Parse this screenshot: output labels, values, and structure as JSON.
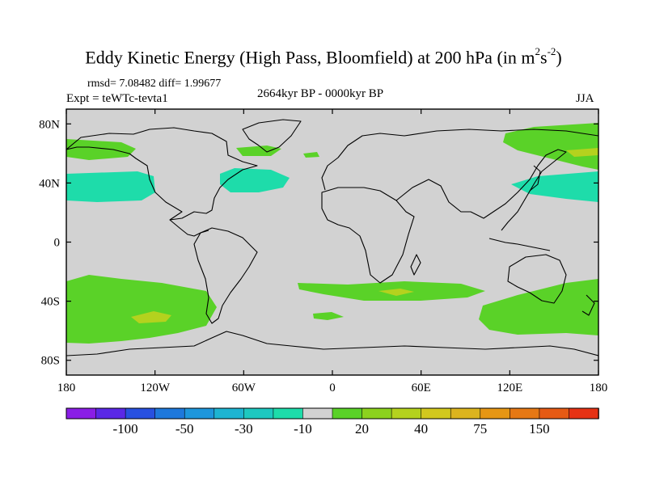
{
  "title": {
    "prefix": "Eddy Kinetic Energy (High Pass, Bloomfield) at 200 hPa (in m",
    "sup1": "2",
    "mid": "s",
    "sup2": "-2",
    "suffix": ")"
  },
  "stats": "rmsd= 7.08482 diff= 1.99677",
  "experiment": "Expt = teWTc-tevta1",
  "period": "2664kyr BP - 0000kyr BP",
  "season": "JJA",
  "lon_ticks": [
    "180",
    "120W",
    "60W",
    "0",
    "60E",
    "120E",
    "180"
  ],
  "lat_ticks": [
    "80N",
    "40N",
    "0",
    "40S",
    "80S"
  ],
  "colorbar": {
    "colors": [
      "#8a1ee6",
      "#5a28e6",
      "#2850e0",
      "#1e78dc",
      "#1e96dc",
      "#1eb4d2",
      "#1ec8c0",
      "#1edcaa",
      "#d2d2d2",
      "#5ad228",
      "#8cd21e",
      "#b4d21e",
      "#d2c81e",
      "#dcb41e",
      "#e69614",
      "#e67814",
      "#e65a14",
      "#e63214"
    ],
    "labels": [
      "-100",
      "-50",
      "-30",
      "-10",
      "20",
      "40",
      "75",
      "150"
    ]
  },
  "map_colors": {
    "background": "#d2d2d2",
    "green": "#5ad228",
    "yellowgreen": "#b4d21e",
    "cyan": "#1edcaa"
  }
}
